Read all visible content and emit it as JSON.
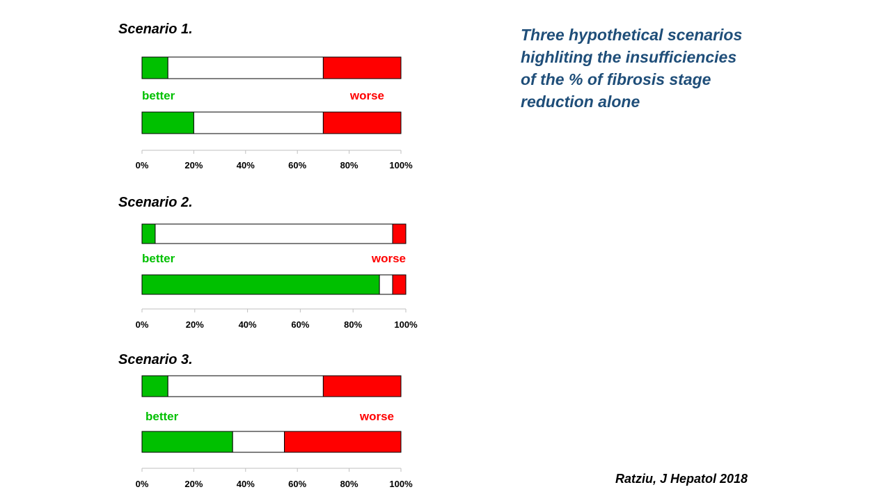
{
  "heading": {
    "lines": [
      "Three hypothetical scenarios",
      "highliting the insufficiencies",
      "of the % of fibrosis stage",
      "reduction alone"
    ]
  },
  "citation": "Ratziu, J Hepatol 2018",
  "colors": {
    "better": "#00c000",
    "worse": "#ff0000",
    "neutral": "#ffffff",
    "heading": "#1f4e79"
  },
  "chart_data": [
    {
      "type": "bar",
      "orientation": "horizontal",
      "stacked": true,
      "title": "Scenario 1.",
      "label_better": "better",
      "label_worse": "worse",
      "xlim": [
        0,
        100
      ],
      "xticks": [
        "0%",
        "20%",
        "40%",
        "60%",
        "80%",
        "100%"
      ],
      "bars": [
        {
          "better": 10,
          "unchanged": 60,
          "worse": 30
        },
        {
          "better": 20,
          "unchanged": 50,
          "worse": 30
        }
      ]
    },
    {
      "type": "bar",
      "orientation": "horizontal",
      "stacked": true,
      "title": "Scenario 2.",
      "label_better": "better",
      "label_worse": "worse",
      "xlim": [
        0,
        100
      ],
      "xticks": [
        "0%",
        "20%",
        "40%",
        "60%",
        "80%",
        "100%"
      ],
      "bars": [
        {
          "better": 5,
          "unchanged": 90,
          "worse": 5
        },
        {
          "better": 90,
          "unchanged": 5,
          "worse": 5
        }
      ]
    },
    {
      "type": "bar",
      "orientation": "horizontal",
      "stacked": true,
      "title": "Scenario 3.",
      "label_better": "better",
      "label_worse": "worse",
      "xlim": [
        0,
        100
      ],
      "xticks": [
        "0%",
        "20%",
        "40%",
        "60%",
        "80%",
        "100%"
      ],
      "bars": [
        {
          "better": 10,
          "unchanged": 60,
          "worse": 30
        },
        {
          "better": 35,
          "unchanged": 20,
          "worse": 45
        }
      ]
    }
  ]
}
